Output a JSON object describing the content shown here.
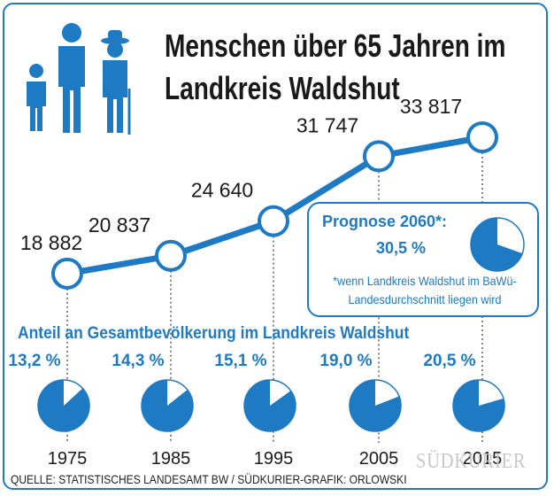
{
  "title_line1": "Menschen über 65 Jahren im",
  "title_line2": "Landkreis Waldshut",
  "icon_name": "family-people-icon",
  "colors": {
    "accent": "#1f7ac4",
    "text": "#1a1a1a",
    "pie_bg": "#ffffff"
  },
  "chart_data": {
    "type": "line",
    "x": [
      "1975",
      "1985",
      "1995",
      "2005",
      "2015"
    ],
    "series": [
      {
        "values": [
          18882,
          20837,
          24640,
          31747,
          33817
        ]
      }
    ],
    "value_labels": [
      "18 882",
      "20 837",
      "24 640",
      "31 747",
      "33 817"
    ],
    "share": {
      "title": "Anteil an Gesamtbevölkerung im Landkreis Waldshut",
      "values": [
        13.2,
        14.3,
        15.1,
        19.0,
        20.5
      ],
      "labels": [
        "13,2 %",
        "14,3 %",
        "15,1 %",
        "19,0 %",
        "20,5 %"
      ]
    },
    "forecast": {
      "title": "Prognose 2060*:",
      "value": 30.5,
      "label": "30,5 %",
      "note": "*wenn Landkreis Waldshut im BaWü-Landesdurchschnitt liegen wird"
    }
  },
  "source": "QUELLE: STATISTISCHES LANDESAMT BW / SÜDKURIER-GRAFIK: ORLOWSKI",
  "watermark": "SÜDKURIER"
}
